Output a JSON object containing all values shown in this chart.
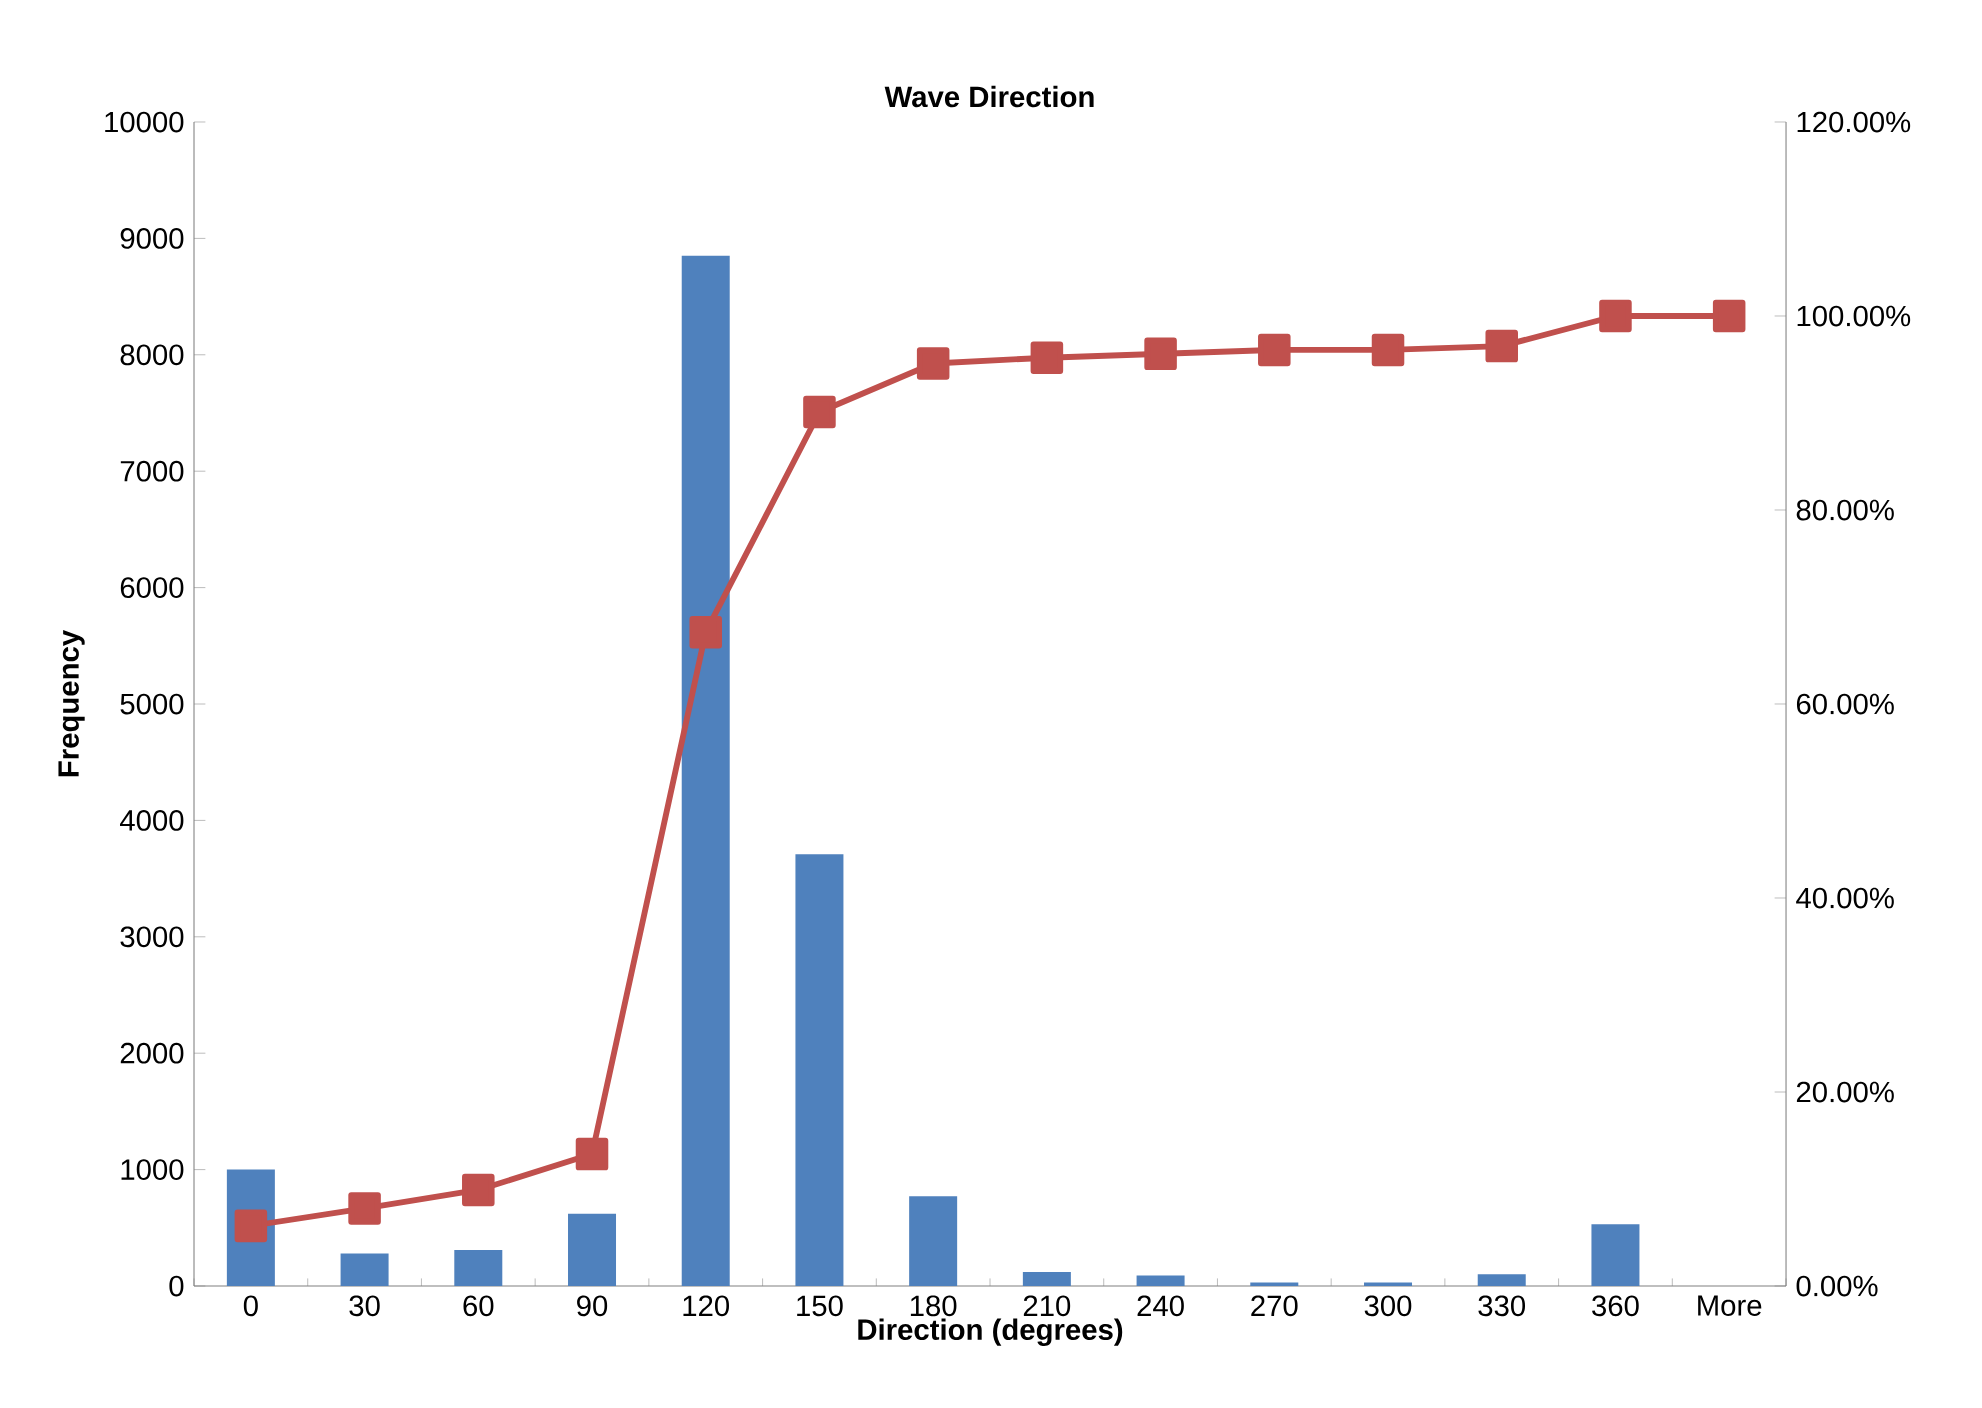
{
  "chart_data": {
    "type": "bar",
    "title": "Wave Direction",
    "xlabel": "Direction (degrees)",
    "ylabel": "Frequency",
    "categories": [
      "0",
      "30",
      "60",
      "90",
      "120",
      "150",
      "180",
      "210",
      "240",
      "270",
      "300",
      "330",
      "360",
      "More"
    ],
    "series": [
      {
        "color": "#4f81bd",
        "values": [
          1000,
          280,
          310,
          620,
          8850,
          3710,
          770,
          120,
          90,
          30,
          30,
          100,
          530,
          0
        ]
      },
      {
        "type": "line",
        "axis": "y2",
        "color": "#c0504d",
        "values": [
          6.2,
          8.0,
          9.9,
          13.6,
          67.4,
          90.1,
          95.1,
          95.7,
          96.1,
          96.5,
          96.5,
          96.9,
          100,
          100
        ]
      }
    ],
    "ylim": [
      0,
      10000
    ],
    "yticks": [
      0,
      1000,
      2000,
      3000,
      4000,
      5000,
      6000,
      7000,
      8000,
      9000,
      10000
    ],
    "y2lim": [
      0,
      120
    ],
    "y2ticks": [
      {
        "value": 0,
        "label": "0.00%"
      },
      {
        "value": 20,
        "label": "20.00%"
      },
      {
        "value": 40,
        "label": "40.00%"
      },
      {
        "value": 60,
        "label": "60.00%"
      },
      {
        "value": 80,
        "label": "80.00%"
      },
      {
        "value": 100,
        "label": "100.00%"
      },
      {
        "value": 120,
        "label": "120.00%"
      }
    ],
    "marker": "square",
    "grid": false
  }
}
